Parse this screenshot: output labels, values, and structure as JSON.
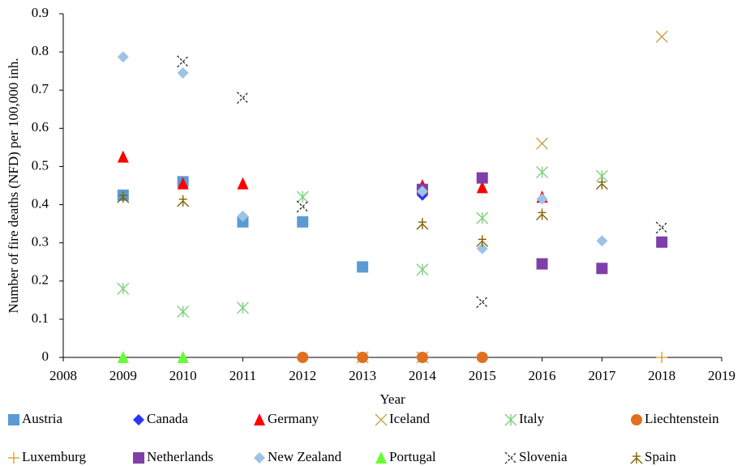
{
  "chart_data": {
    "type": "scatter",
    "xlabel": "Year",
    "ylabel": "Number of fire deaths (NFD) per 100,000 inh.",
    "xlim": [
      2008,
      2019
    ],
    "xticks": [
      2008,
      2009,
      2010,
      2011,
      2012,
      2013,
      2014,
      2015,
      2016,
      2017,
      2018,
      2019
    ],
    "ylim": [
      0,
      0.9
    ],
    "yticks": [
      0,
      0.1,
      0.2,
      0.3,
      0.4,
      0.5,
      0.6,
      0.7,
      0.8,
      0.9
    ],
    "grid": false,
    "legend": "bottom",
    "series": [
      {
        "name": "Austria",
        "color": "#5b9bd5",
        "marker": "square",
        "x": [
          2009,
          2010,
          2011,
          2012,
          2013
        ],
        "values": [
          0.425,
          0.46,
          0.355,
          0.355,
          0.237
        ]
      },
      {
        "name": "Canada",
        "color": "#2a35ff",
        "marker": "diamond",
        "x": [
          2014
        ],
        "values": [
          0.425
        ]
      },
      {
        "name": "Germany",
        "color": "#ff0000",
        "marker": "triangle",
        "x": [
          2009,
          2010,
          2011,
          2014,
          2015,
          2016
        ],
        "values": [
          0.525,
          0.455,
          0.455,
          0.45,
          0.445,
          0.42
        ]
      },
      {
        "name": "Iceland",
        "color": "#c9a24a",
        "marker": "x",
        "x": [
          2013,
          2014,
          2016,
          2018
        ],
        "values": [
          0,
          0,
          0.56,
          0.84
        ]
      },
      {
        "name": "Italy",
        "color": "#7fcf7f",
        "marker": "asterisk",
        "x": [
          2009,
          2010,
          2011,
          2012,
          2014,
          2015,
          2016,
          2017
        ],
        "values": [
          0.18,
          0.12,
          0.13,
          0.42,
          0.23,
          0.365,
          0.485,
          0.475
        ]
      },
      {
        "name": "Liechtenstein",
        "color": "#e0701f",
        "marker": "circle",
        "x": [
          2012,
          2013,
          2014,
          2015
        ],
        "values": [
          0,
          0,
          0,
          0
        ]
      },
      {
        "name": "Luxemburg",
        "color": "#d4a82a",
        "marker": "plus",
        "x": [
          2018
        ],
        "values": [
          0
        ]
      },
      {
        "name": "Netherlands",
        "color": "#7f3fa8",
        "marker": "square",
        "x": [
          2014,
          2015,
          2016,
          2017,
          2018
        ],
        "values": [
          0.44,
          0.47,
          0.245,
          0.233,
          0.302
        ]
      },
      {
        "name": "New Zealand",
        "color": "#9dc3e6",
        "marker": "diamond",
        "x": [
          2009,
          2010,
          2011,
          2014,
          2015,
          2016,
          2017
        ],
        "values": [
          0.787,
          0.745,
          0.37,
          0.435,
          0.285,
          0.415,
          0.305
        ]
      },
      {
        "name": "Portugal",
        "color": "#66ff33",
        "marker": "triangle",
        "x": [
          2009,
          2010
        ],
        "values": [
          0,
          0
        ]
      },
      {
        "name": "Slovenia",
        "color": "#333333",
        "marker": "dashx",
        "x": [
          2010,
          2011,
          2012,
          2015,
          2018
        ],
        "values": [
          0.775,
          0.68,
          0.395,
          0.145,
          0.34
        ]
      },
      {
        "name": "Spain",
        "color": "#7f6000",
        "marker": "star",
        "x": [
          2009,
          2010,
          2014,
          2015,
          2016,
          2017
        ],
        "values": [
          0.42,
          0.41,
          0.35,
          0.305,
          0.375,
          0.455
        ]
      }
    ]
  }
}
